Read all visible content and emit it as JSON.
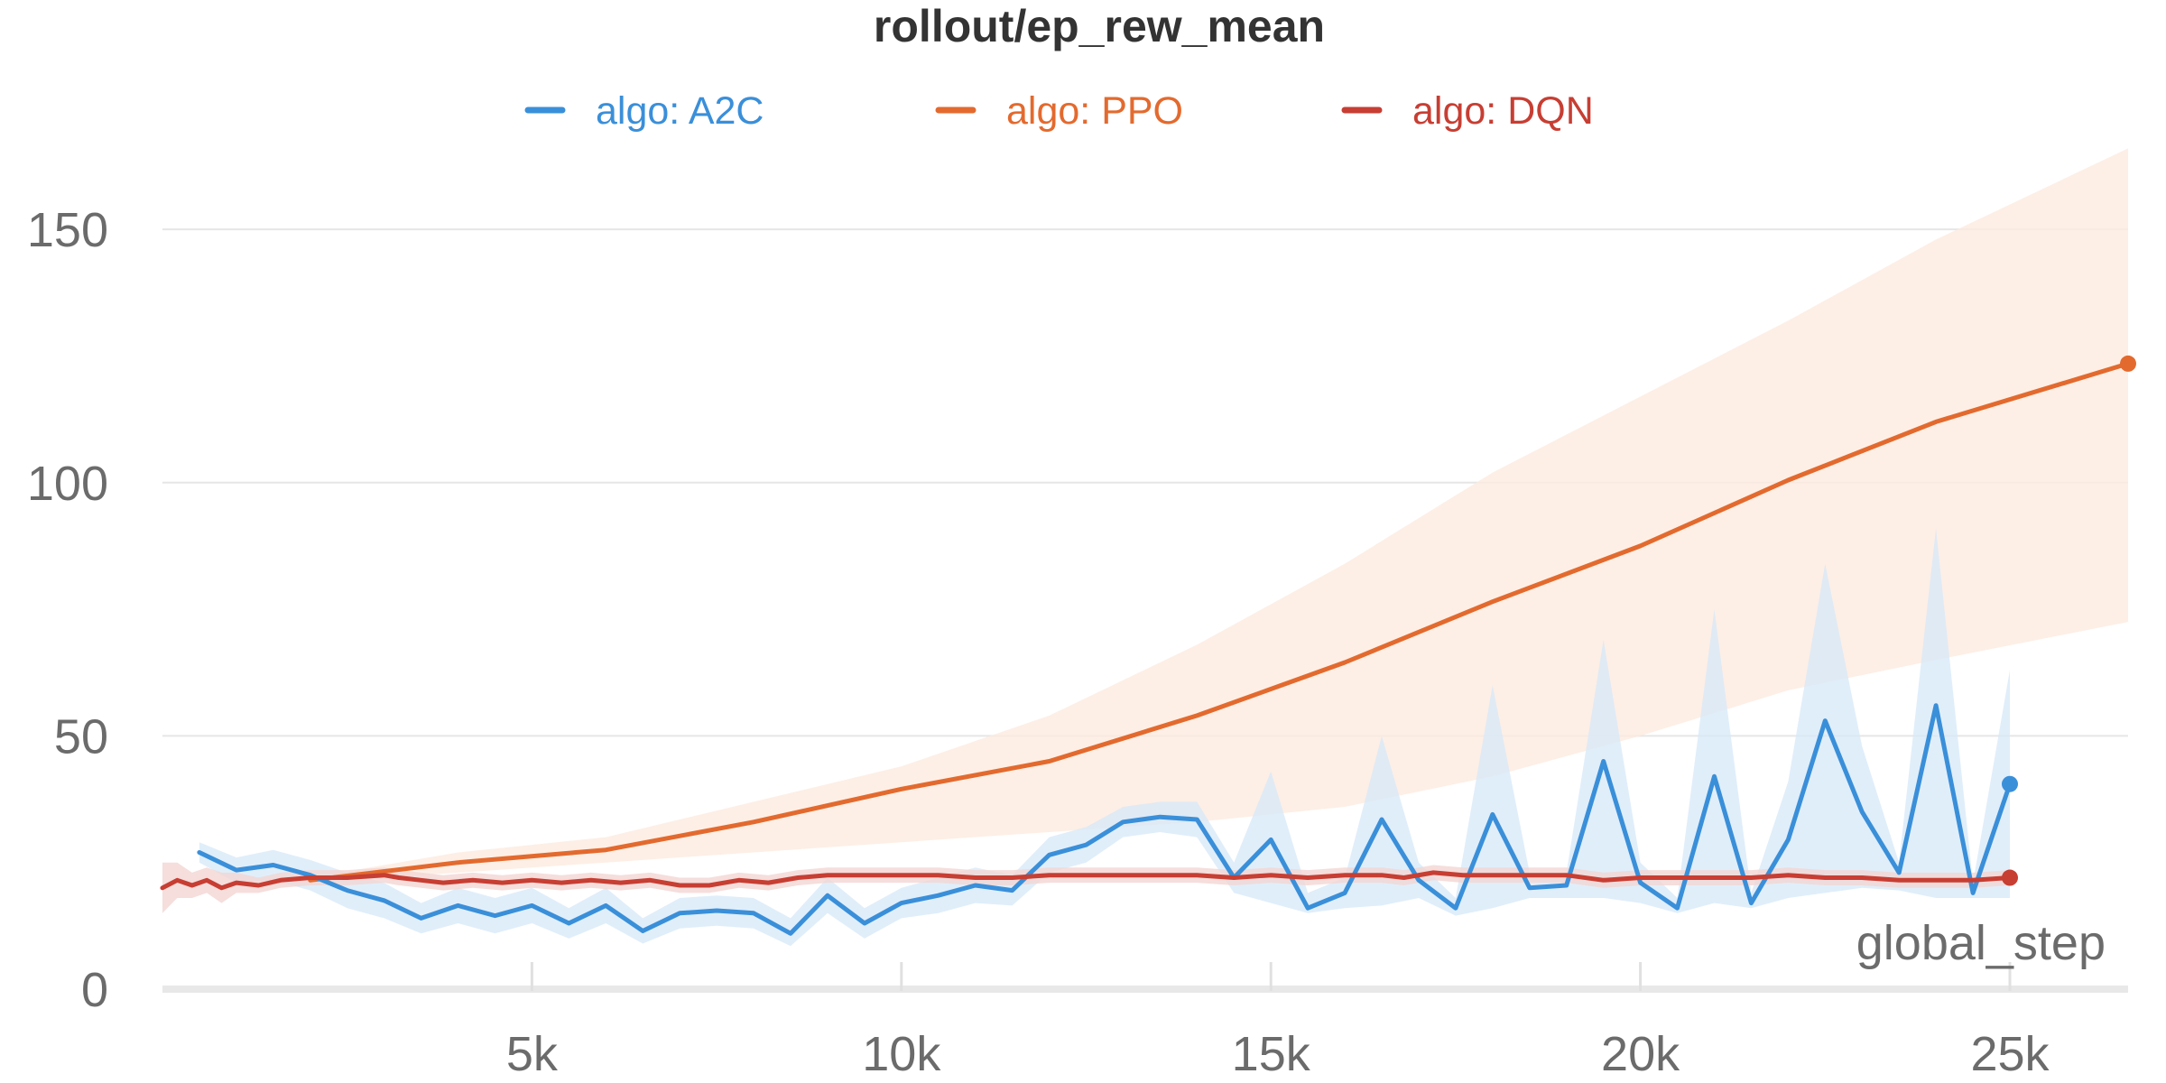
{
  "chart_data": {
    "type": "line",
    "title": "rollout/ep_rew_mean",
    "xlabel": "global_step",
    "ylabel": "",
    "xlim": [
      0,
      26600
    ],
    "ylim": [
      0,
      165
    ],
    "x_ticks": [
      5000,
      10000,
      15000,
      20000,
      25000
    ],
    "x_tick_labels": [
      "5k",
      "10k",
      "15k",
      "20k",
      "25k"
    ],
    "y_ticks": [
      0,
      50,
      100,
      150
    ],
    "y_tick_labels": [
      "0",
      "50",
      "100",
      "150"
    ],
    "grid": true,
    "legend": "top",
    "series": [
      {
        "name": "algo: A2C",
        "color": "#3a8fd9",
        "band_color": "#d6e8f8",
        "x": [
          500,
          1000,
          1500,
          2000,
          2500,
          3000,
          3500,
          4000,
          4500,
          5000,
          5500,
          6000,
          6500,
          7000,
          7500,
          8000,
          8500,
          9000,
          9500,
          10000,
          10500,
          11000,
          11500,
          12000,
          12500,
          13000,
          13500,
          14000,
          14500,
          15000,
          15500,
          16000,
          16500,
          17000,
          17500,
          18000,
          18500,
          19000,
          19500,
          20000,
          20500,
          21000,
          21500,
          22000,
          22500,
          23000,
          23500,
          24000,
          24500,
          25000
        ],
        "values": [
          27,
          23.5,
          24.5,
          22.5,
          19.5,
          17.5,
          14,
          16.5,
          14.5,
          16.5,
          13,
          16.5,
          11.5,
          15,
          15.5,
          15,
          11,
          18.5,
          13,
          17,
          18.5,
          20.5,
          19.5,
          26.5,
          28.5,
          33,
          34,
          33.5,
          22,
          29.5,
          16,
          19,
          33.5,
          21.5,
          16,
          34.5,
          20,
          20.5,
          45,
          21,
          16,
          42,
          17,
          29.5,
          53,
          35,
          23,
          56,
          19,
          40.5
        ],
        "band_lower": [
          25,
          21,
          21.5,
          19.5,
          16,
          14,
          11,
          13,
          11,
          13,
          10,
          13,
          9,
          12,
          12.5,
          12,
          8.5,
          15,
          10,
          14,
          15,
          17,
          16.5,
          23,
          25,
          30,
          31,
          30,
          19,
          17,
          15,
          16,
          16.5,
          18,
          14.5,
          16,
          18,
          18,
          18,
          17,
          15,
          17,
          16,
          18,
          19,
          20,
          19.5,
          18,
          18,
          18
        ],
        "band_upper": [
          29,
          26,
          27.5,
          25.5,
          23,
          21,
          17,
          20,
          18,
          20,
          16,
          20,
          14,
          18,
          18.5,
          18,
          14,
          22,
          16,
          20,
          22,
          24,
          22.5,
          30,
          32,
          36,
          37,
          37,
          25,
          43,
          19,
          22,
          50,
          25,
          18,
          60,
          23,
          23,
          69,
          25,
          18,
          75,
          19,
          41,
          84,
          48,
          25,
          91,
          21,
          63
        ]
      },
      {
        "name": "algo: PPO",
        "color": "#e36a2e",
        "band_color": "#fdebe0",
        "x": [
          2000,
          4000,
          6000,
          8000,
          10000,
          12000,
          14000,
          16000,
          18000,
          20000,
          22000,
          24000,
          26600
        ],
        "values": [
          21.5,
          25,
          27.5,
          33,
          39.5,
          45,
          54,
          64.5,
          76.5,
          87.5,
          100.5,
          112,
          123.5
        ],
        "band_lower": [
          21,
          23,
          25,
          27,
          29,
          31,
          33,
          36,
          42,
          50,
          59,
          65,
          72.5
        ],
        "band_upper": [
          22,
          27,
          30,
          37,
          44,
          54,
          68,
          84,
          102,
          117,
          132,
          148,
          166
        ]
      },
      {
        "name": "algo: DQN",
        "color": "#c73e33",
        "band_color": "#f3d6d3",
        "x": [
          0,
          200,
          400,
          600,
          800,
          1000,
          1300,
          1600,
          2000,
          2500,
          3000,
          3200,
          3500,
          3800,
          4200,
          4600,
          5000,
          5400,
          5800,
          6200,
          6600,
          7000,
          7400,
          7800,
          8200,
          8600,
          9000,
          9500,
          10000,
          10500,
          11000,
          11500,
          12000,
          12500,
          13000,
          13500,
          14000,
          14500,
          15000,
          15500,
          16000,
          16500,
          16800,
          17200,
          17600,
          18000,
          18500,
          19000,
          19500,
          20000,
          20500,
          21000,
          21500,
          22000,
          22500,
          23000,
          23500,
          24000,
          24500,
          25000
        ],
        "values": [
          20,
          21.5,
          20.5,
          21.5,
          20,
          21,
          20.5,
          21.5,
          22,
          22,
          22.5,
          22,
          21.5,
          21,
          21.5,
          21,
          21.5,
          21,
          21.5,
          21,
          21.5,
          20.5,
          20.5,
          21.5,
          21,
          22,
          22.5,
          22.5,
          22.5,
          22.5,
          22,
          22,
          22.5,
          22.5,
          22.5,
          22.5,
          22.5,
          22,
          22.5,
          22,
          22.5,
          22.5,
          22,
          23,
          22.5,
          22.5,
          22.5,
          22.5,
          21.5,
          22,
          22,
          22,
          22,
          22.5,
          22,
          22,
          21.5,
          21.5,
          21.5,
          22
        ],
        "band_lower": [
          15,
          18,
          18,
          19,
          17,
          19,
          19,
          20,
          20.5,
          20.5,
          21,
          20.5,
          20,
          19.5,
          20,
          19.5,
          20,
          19.5,
          20,
          19.5,
          20,
          19,
          19,
          20,
          19.5,
          20.5,
          21,
          21,
          21,
          21,
          20.5,
          20.5,
          21,
          21,
          21,
          21,
          21,
          20.5,
          21,
          20.5,
          21,
          21,
          20.5,
          21.5,
          21,
          21,
          21,
          21,
          20,
          20.5,
          20.5,
          20.5,
          20.5,
          21,
          20.5,
          20.5,
          20,
          20,
          20,
          20.5
        ],
        "band_upper": [
          25,
          25,
          23,
          24,
          23,
          23,
          22,
          23,
          23.5,
          23.5,
          24,
          23.5,
          23,
          22.5,
          23,
          22.5,
          23,
          22.5,
          23,
          22.5,
          23,
          22,
          22,
          23,
          22.5,
          23.5,
          24,
          24,
          24,
          24,
          23.5,
          23.5,
          24,
          24,
          24,
          24,
          24,
          23.5,
          24,
          23.5,
          24,
          24,
          23.5,
          24.5,
          24,
          24,
          24,
          24,
          23,
          23.5,
          23.5,
          23.5,
          23.5,
          24,
          23.5,
          23.5,
          23,
          23,
          23,
          23.5
        ]
      }
    ]
  }
}
